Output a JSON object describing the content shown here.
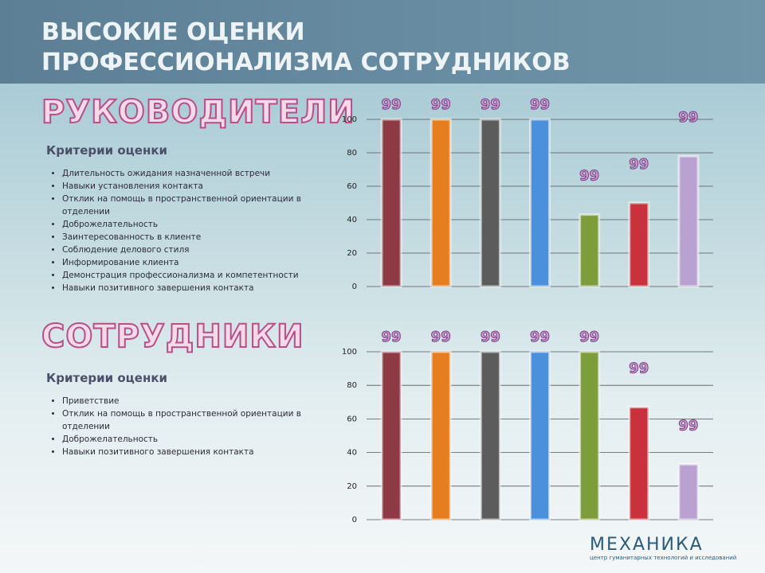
{
  "title": "ВЫСОКИЕ ОЦЕНКИ ПРОФЕССИОНАЛИЗМА СОТРУДНИКОВ",
  "sections": [
    {
      "heading": "РУКОВОДИТЕЛИ",
      "criteria_title": "Критерии оценки",
      "criteria": [
        "Длительность ожидания назначенной встречи",
        "Навыки установления контакта",
        "Отклик на помощь в пространственной ориентации в отделении",
        "Доброжелательность",
        "Заинтересованность в клиенте",
        "Соблюдение делового стиля",
        "Информирование клиента",
        "Демонстрация профессионализма и компетентности",
        "Навыки позитивного завершения контакта"
      ]
    },
    {
      "heading": "СОТРУДНИКИ",
      "criteria_title": "Критерии оценки",
      "criteria": [
        "Приветствие",
        "Отклик на помощь в пространственной ориентации в отделении",
        "Доброжелательность",
        "Навыки позитивного завершения контакта"
      ]
    }
  ],
  "logo": {
    "name": "МЕХАНИКА",
    "subtitle": "центр гуманитарных технологий и исследований"
  },
  "chart_data": [
    {
      "type": "bar",
      "categories": [
        null,
        null,
        null,
        null,
        null,
        null,
        null
      ],
      "values": [
        100,
        100,
        100,
        100,
        43,
        50,
        78
      ],
      "colors": [
        "#8e3a45",
        "#e67e1f",
        "#5c5c5c",
        "#4b90dc",
        "#7d9c3c",
        "#c9313c",
        "#b9a2d2"
      ],
      "ylim": [
        0,
        100
      ],
      "yticks": [
        0,
        20,
        40,
        60,
        80,
        100
      ],
      "grid": true,
      "annotations": [
        "99",
        "99",
        "99",
        "99",
        "99",
        "99",
        "99"
      ]
    },
    {
      "type": "bar",
      "categories": [
        null,
        null,
        null,
        null,
        null,
        null,
        null
      ],
      "values": [
        100,
        100,
        100,
        100,
        100,
        67,
        33
      ],
      "colors": [
        "#8e3a45",
        "#e67e1f",
        "#5c5c5c",
        "#4b90dc",
        "#7d9c3c",
        "#c9313c",
        "#b9a2d2"
      ],
      "ylim": [
        0,
        100
      ],
      "yticks": [
        0,
        20,
        40,
        60,
        80,
        100
      ],
      "grid": true,
      "annotations": [
        "99",
        "99",
        "99",
        "99",
        "99",
        "99",
        "99"
      ]
    }
  ]
}
